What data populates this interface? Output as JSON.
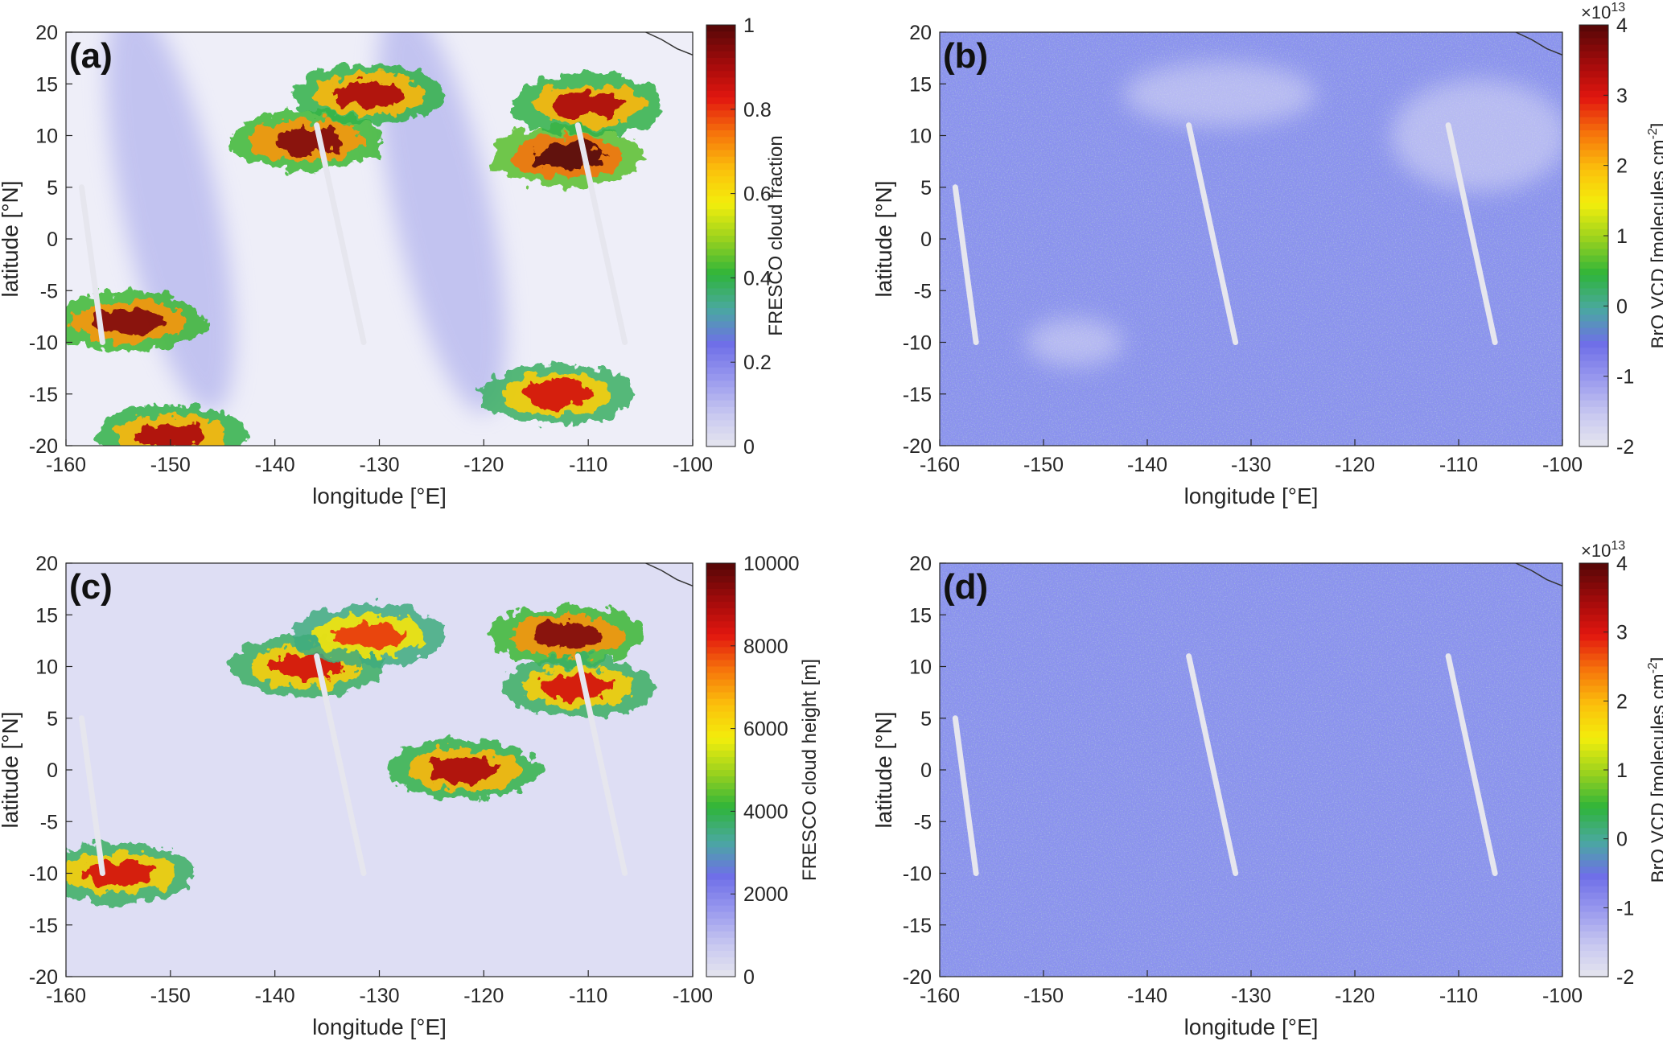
{
  "colors": {
    "colormap": [
      "#e8e8ee",
      "#c8c8f0",
      "#9a9aee",
      "#6f6fe8",
      "#4aa8a0",
      "#2fb43a",
      "#9ad21e",
      "#f3ee0c",
      "#fbbf0c",
      "#f6740b",
      "#e2160f",
      "#a20b0b",
      "#5a0707"
    ],
    "ocean_light": "#eeeef8",
    "bro_background": "#8a90f0",
    "cloud_heavy": "#6b0909",
    "coastline": "#333333",
    "axes": "#262626"
  },
  "chart_data": [
    {
      "panel": "(a)",
      "type": "heatmap",
      "xlabel": "longitude [°E]",
      "ylabel": "latitude [°N]",
      "xlim": [
        -160,
        -100
      ],
      "ylim": [
        -20,
        20
      ],
      "xticks": [
        "-160",
        "-150",
        "-140",
        "-130",
        "-120",
        "-110",
        "-100"
      ],
      "yticks": [
        "20",
        "15",
        "10",
        "5",
        "0",
        "-5",
        "-10",
        "-15",
        "-20"
      ],
      "colorbar": {
        "label": "FRESCO cloud fraction",
        "range": [
          0,
          1
        ],
        "ticks": [
          "1",
          "0.8",
          "0.6",
          "0.4",
          "0.2",
          "0"
        ],
        "exponent_base": "",
        "exponent_power": ""
      },
      "field": "cloud",
      "features": [
        {
          "lon": -137,
          "lat": 9.5,
          "value": 0.95
        },
        {
          "lon": -131,
          "lat": 14,
          "value": 0.9
        },
        {
          "lon": -112,
          "lat": 8,
          "value": 1.0
        },
        {
          "lon": -110,
          "lat": 13,
          "value": 0.9
        },
        {
          "lon": -154,
          "lat": -8,
          "value": 0.95
        },
        {
          "lon": -113,
          "lat": -15,
          "value": 0.85
        },
        {
          "lon": -150,
          "lat": -19,
          "value": 0.9
        }
      ]
    },
    {
      "panel": "(b)",
      "type": "heatmap",
      "xlabel": "longitude [°E]",
      "ylabel": "latitude [°N]",
      "xlim": [
        -160,
        -100
      ],
      "ylim": [
        -20,
        20
      ],
      "xticks": [
        "-160",
        "-150",
        "-140",
        "-130",
        "-120",
        "-110",
        "-100"
      ],
      "yticks": [
        "20",
        "15",
        "10",
        "5",
        "0",
        "-5",
        "-10",
        "-15",
        "-20"
      ],
      "colorbar": {
        "label": "BrO VCD [molecules cm",
        "label_sup": "-2",
        "label_end": "]",
        "range": [
          -2,
          4
        ],
        "ticks": [
          "4",
          "3",
          "2",
          "1",
          "0",
          "-1",
          "-2"
        ],
        "exponent_base": "×10",
        "exponent_power": "13"
      },
      "field": "bro"
    },
    {
      "panel": "(c)",
      "type": "heatmap",
      "xlabel": "longitude [°E]",
      "ylabel": "latitude [°N]",
      "xlim": [
        -160,
        -100
      ],
      "ylim": [
        -20,
        20
      ],
      "xticks": [
        "-160",
        "-150",
        "-140",
        "-130",
        "-120",
        "-110",
        "-100"
      ],
      "yticks": [
        "20",
        "15",
        "10",
        "5",
        "0",
        "-5",
        "-10",
        "-15",
        "-20"
      ],
      "colorbar": {
        "label": "FRESCO cloud height [m]",
        "range": [
          0,
          10000
        ],
        "ticks": [
          "10000",
          "8000",
          "6000",
          "4000",
          "2000",
          "0"
        ],
        "exponent_base": "",
        "exponent_power": ""
      },
      "field": "height",
      "features": [
        {
          "lon": -137,
          "lat": 10,
          "value": 8500
        },
        {
          "lon": -131,
          "lat": 13,
          "value": 8000
        },
        {
          "lon": -112,
          "lat": 13,
          "value": 9500
        },
        {
          "lon": -111,
          "lat": 8,
          "value": 8500
        },
        {
          "lon": -155,
          "lat": -10,
          "value": 8500
        },
        {
          "lon": -122,
          "lat": 0,
          "value": 9000
        }
      ]
    },
    {
      "panel": "(d)",
      "type": "heatmap",
      "xlabel": "longitude [°E]",
      "ylabel": "latitude [°N]",
      "xlim": [
        -160,
        -100
      ],
      "ylim": [
        -20,
        20
      ],
      "xticks": [
        "-160",
        "-150",
        "-140",
        "-130",
        "-120",
        "-110",
        "-100"
      ],
      "yticks": [
        "20",
        "15",
        "10",
        "5",
        "0",
        "-5",
        "-10",
        "-15",
        "-20"
      ],
      "colorbar": {
        "label": "BrO VCD [molecules cm",
        "label_sup": "-2",
        "label_end": "]",
        "range": [
          -2,
          4
        ],
        "ticks": [
          "4",
          "3",
          "2",
          "1",
          "0",
          "-1",
          "-2"
        ],
        "exponent_base": "×10",
        "exponent_power": "13"
      },
      "field": "bro"
    }
  ]
}
